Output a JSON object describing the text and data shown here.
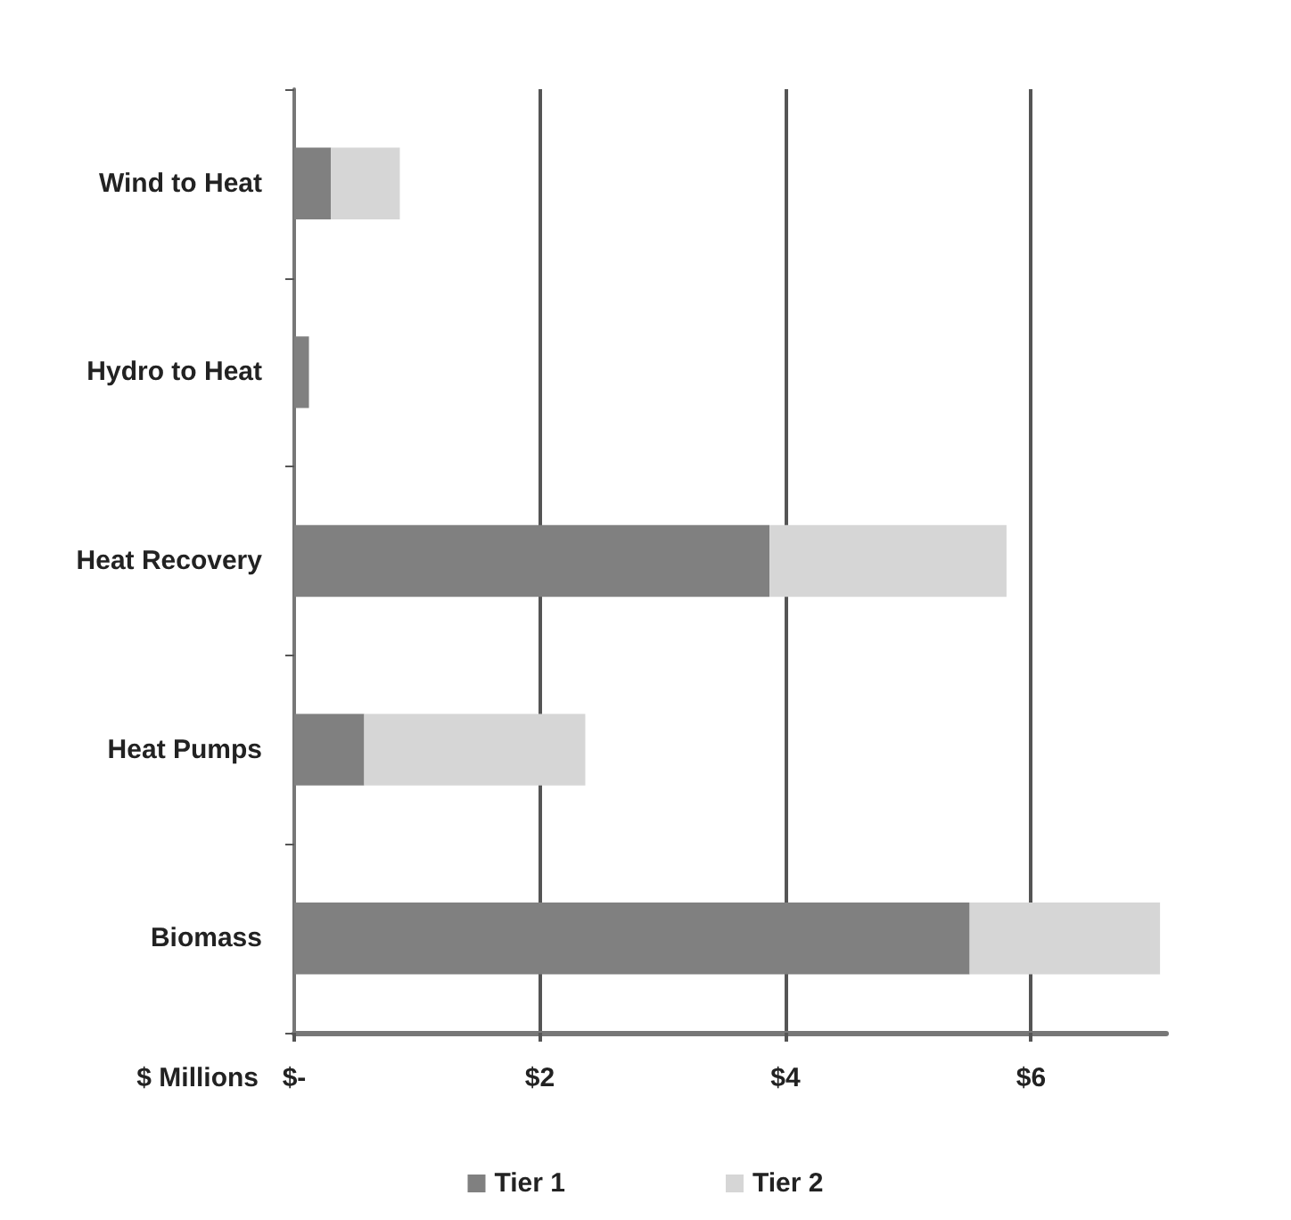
{
  "chart_data": {
    "type": "bar",
    "orientation": "horizontal",
    "stacked": true,
    "categories": [
      "Wind to Heat",
      "Hydro to Heat",
      "Heat Recovery",
      "Heat Pumps",
      "Biomass"
    ],
    "series": [
      {
        "name": "Tier 1",
        "color": "#808080",
        "values": [
          0.3,
          0.12,
          3.87,
          0.57,
          5.5
        ]
      },
      {
        "name": "Tier 2",
        "color": "#d6d6d6",
        "values": [
          0.56,
          0,
          1.93,
          1.8,
          1.55
        ]
      }
    ],
    "xlabel": "$ Millions",
    "xlim": [
      0,
      7.1
    ],
    "xticks": [
      {
        "value": 0,
        "label": "$-"
      },
      {
        "value": 2,
        "label": "$2"
      },
      {
        "value": 4,
        "label": "$4"
      },
      {
        "value": 6,
        "label": "$6"
      }
    ],
    "grid": "x",
    "legend": "bottom"
  }
}
